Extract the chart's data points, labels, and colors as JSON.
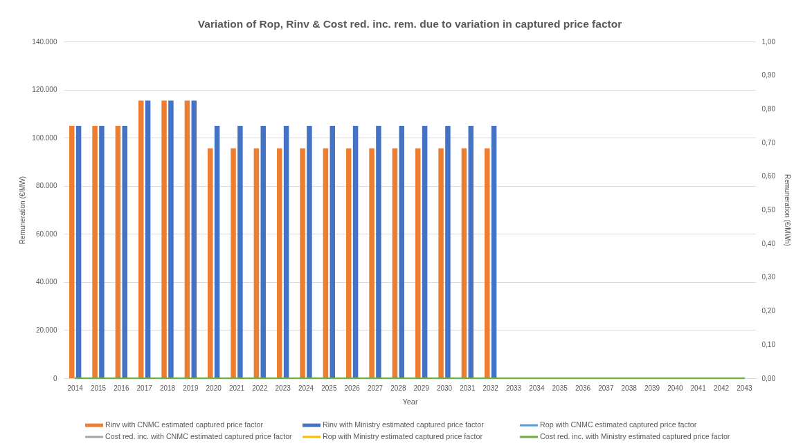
{
  "chart_data": {
    "type": "bar",
    "title": "Variation of Rop, Rinv & Cost red. inc. rem. due to variation in captured price factor",
    "xlabel": "Year",
    "ylabel": "Remuneration (€/MW)",
    "y2label": "Remuneration (€/MWh)",
    "categories": [
      "2014",
      "2015",
      "2016",
      "2017",
      "2018",
      "2019",
      "2020",
      "2021",
      "2022",
      "2023",
      "2024",
      "2025",
      "2026",
      "2027",
      "2028",
      "2029",
      "2030",
      "2031",
      "2032",
      "2033",
      "2034",
      "2035",
      "2036",
      "2037",
      "2038",
      "2039",
      "2040",
      "2041",
      "2042",
      "2043"
    ],
    "series": [
      {
        "name": "Rinv with CNMC estimated captured price factor",
        "color": "#ed7d31",
        "values": [
          104900,
          104900,
          104900,
          115400,
          115400,
          115400,
          95600,
          95600,
          95600,
          95600,
          95600,
          95600,
          95600,
          95600,
          95600,
          95600,
          95600,
          95600,
          95600,
          null,
          null,
          null,
          null,
          null,
          null,
          null,
          null,
          null,
          null,
          null
        ]
      },
      {
        "name": "Rinv with Ministry estimated captured price factor",
        "color": "#4472c4",
        "values": [
          104900,
          104900,
          104900,
          115400,
          115400,
          115400,
          104900,
          104900,
          104900,
          104900,
          104900,
          104900,
          104900,
          104900,
          104900,
          104900,
          104900,
          104900,
          104900,
          null,
          null,
          null,
          null,
          null,
          null,
          null,
          null,
          null,
          null,
          null
        ]
      },
      {
        "name": "Rop with CNMC estimated captured price factor",
        "type": "line",
        "axis": "y2",
        "color": "#5b9bd5",
        "values": [
          null,
          null,
          null,
          null,
          null,
          null,
          null,
          null,
          null,
          null,
          null,
          null,
          null,
          null,
          null,
          null,
          null,
          null,
          null,
          null,
          null,
          null,
          null,
          null,
          null,
          null,
          null,
          null,
          null,
          null
        ]
      },
      {
        "name": "Cost red. inc. with CNMC estimated captured price factor",
        "type": "line",
        "axis": "y2",
        "color": "#a5a5a5",
        "values": [
          null,
          null,
          null,
          null,
          null,
          null,
          null,
          null,
          null,
          null,
          null,
          null,
          null,
          null,
          null,
          null,
          null,
          null,
          null,
          null,
          null,
          null,
          null,
          null,
          null,
          null,
          null,
          null,
          null,
          null
        ]
      },
      {
        "name": "Rop with Ministry estimated captured price factor",
        "type": "line",
        "axis": "y2",
        "color": "#ffc000",
        "values": [
          null,
          null,
          null,
          null,
          null,
          null,
          null,
          null,
          null,
          null,
          null,
          null,
          null,
          null,
          null,
          null,
          null,
          null,
          null,
          null,
          null,
          null,
          null,
          null,
          null,
          null,
          null,
          null,
          null,
          null
        ]
      },
      {
        "name": "Cost red. inc. with Ministry estimated captured price factor",
        "type": "line",
        "axis": "y2",
        "color": "#70ad47",
        "values": [
          0,
          0,
          0,
          0,
          0,
          0,
          0,
          0,
          0,
          0,
          0,
          0,
          0,
          0,
          0,
          0,
          0,
          0,
          0,
          0,
          0,
          0,
          0,
          0,
          0,
          0,
          0,
          0,
          0,
          0
        ]
      }
    ],
    "ylim": [
      0,
      140000
    ],
    "yticks": [
      0,
      {
        "value": 20000,
        "label": "20.000"
      },
      {
        "value": 40000,
        "label": "40.000"
      },
      {
        "value": 60000,
        "label": "60.000"
      },
      {
        "value": 80000,
        "label": "80.000"
      },
      {
        "value": 100000,
        "label": "100.000"
      },
      {
        "value": 120000,
        "label": "120.000"
      },
      {
        "value": 140000,
        "label": "140.000"
      }
    ],
    "y2lim": [
      0,
      1
    ],
    "y2ticks": [
      {
        "value": 0,
        "label": "0,00"
      },
      {
        "value": 0.1,
        "label": "0,10"
      },
      {
        "value": 0.2,
        "label": "0,20"
      },
      {
        "value": 0.3,
        "label": "0,30"
      },
      {
        "value": 0.4,
        "label": "0,40"
      },
      {
        "value": 0.5,
        "label": "0,50"
      },
      {
        "value": 0.6,
        "label": "0,60"
      },
      {
        "value": 0.7,
        "label": "0,70"
      },
      {
        "value": 0.8,
        "label": "0,80"
      },
      {
        "value": 0.9,
        "label": "0,90"
      },
      {
        "value": 1,
        "label": "1,00"
      }
    ],
    "grid": "y",
    "legend": "bottom",
    "line_style": "solid"
  }
}
